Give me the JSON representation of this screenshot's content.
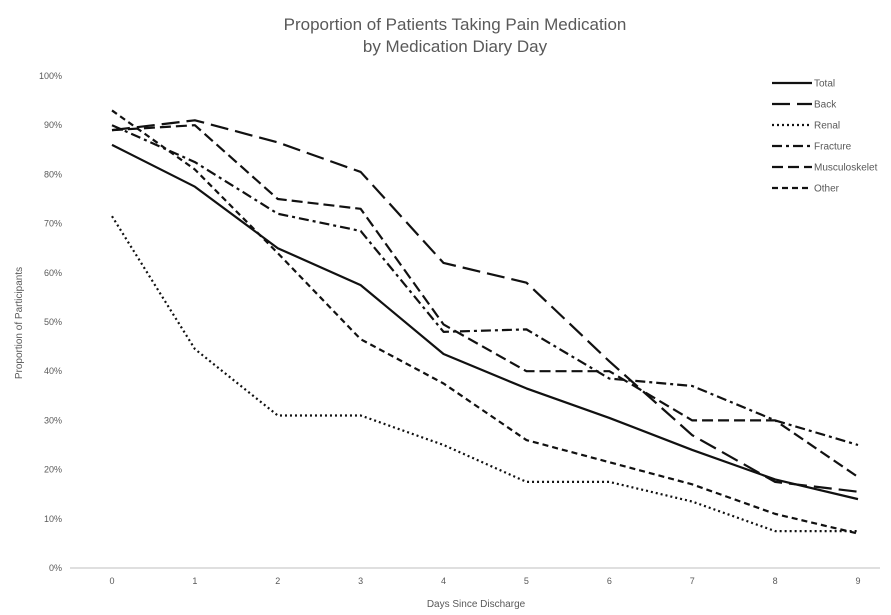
{
  "chart_data": {
    "type": "line",
    "title": [
      "Proportion of Patients Taking Pain Medication",
      "by Medication Diary Day"
    ],
    "xlabel": "Days Since Discharge",
    "ylabel": "Proportion of Participants",
    "x": [
      0,
      1,
      2,
      3,
      4,
      5,
      6,
      7,
      8,
      9
    ],
    "x_tick_labels": [
      "0",
      "1",
      "2",
      "3",
      "4",
      "5",
      "6",
      "7",
      "8",
      "9"
    ],
    "y_tick_labels": [
      "0%",
      "10%",
      "20%",
      "30%",
      "40%",
      "50%",
      "60%",
      "70%",
      "80%",
      "90%",
      "100%"
    ],
    "ylim": [
      0,
      100
    ],
    "grid": "none",
    "legend_position": "top-right",
    "series": [
      {
        "name": "Total",
        "style": "solid",
        "values": [
          86,
          77.5,
          65,
          57.5,
          43.5,
          36.5,
          30.5,
          24,
          18,
          14
        ]
      },
      {
        "name": "Back",
        "style": "long-dash",
        "values": [
          89,
          91,
          86.5,
          80.5,
          62,
          58,
          42,
          27,
          17.5,
          15.5
        ]
      },
      {
        "name": "Renal",
        "style": "dotted",
        "values": [
          71.5,
          44.5,
          31,
          31,
          25,
          17.5,
          17.5,
          13.5,
          7.5,
          7.5
        ]
      },
      {
        "name": "Fracture",
        "style": "dash-dot",
        "values": [
          90,
          82.5,
          72,
          68.5,
          48,
          48.5,
          38.5,
          37,
          30,
          25
        ]
      },
      {
        "name": "Musculoskelet",
        "style": "dash",
        "values": [
          89,
          90,
          75,
          73,
          49.5,
          40,
          40,
          30,
          30,
          18.5
        ]
      },
      {
        "name": "Other",
        "style": "short-dash",
        "values": [
          93,
          81,
          64,
          46.5,
          37.5,
          26,
          21.5,
          17,
          11,
          7
        ]
      }
    ]
  }
}
